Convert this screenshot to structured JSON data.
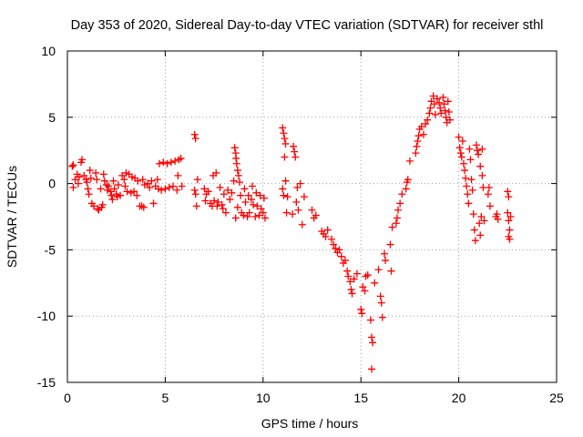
{
  "chart_data": {
    "type": "scatter",
    "title": "Day 353 of 2020, Sidereal Day-to-day VTEC variation (SDTVAR) for receiver sthl",
    "xlabel": "GPS time / hours",
    "ylabel": "SDTVAR / TECUs",
    "xlim": [
      0,
      25
    ],
    "ylim": [
      -15,
      10
    ],
    "xticks": [
      "0",
      "5",
      "10",
      "15",
      "20",
      "25"
    ],
    "yticks": [
      "10",
      "5",
      "0",
      "-5",
      "-10",
      "-15"
    ],
    "grid": true,
    "marker": "+",
    "color": "#ff0000",
    "series": [
      {
        "name": "SDTVAR",
        "points": [
          [
            0.25,
            1.3
          ],
          [
            0.3,
            1.4
          ],
          [
            0.3,
            -0.3
          ],
          [
            0.4,
            0.3
          ],
          [
            0.5,
            0.7
          ],
          [
            0.55,
            0.0
          ],
          [
            0.6,
            0.5
          ],
          [
            0.7,
            1.6
          ],
          [
            0.75,
            1.8
          ],
          [
            0.85,
            0.6
          ],
          [
            0.95,
            0.3
          ],
          [
            1.0,
            0.1
          ],
          [
            1.05,
            -0.4
          ],
          [
            1.1,
            -0.8
          ],
          [
            1.15,
            1.0
          ],
          [
            1.2,
            0.4
          ],
          [
            1.25,
            -1.5
          ],
          [
            1.35,
            -1.7
          ],
          [
            1.45,
            0.8
          ],
          [
            1.5,
            0.3
          ],
          [
            1.55,
            -1.9
          ],
          [
            1.6,
            -2.0
          ],
          [
            1.7,
            -0.4
          ],
          [
            1.75,
            -1.8
          ],
          [
            1.8,
            -1.6
          ],
          [
            1.85,
            0.7
          ],
          [
            1.9,
            0.2
          ],
          [
            2.0,
            -0.1
          ],
          [
            2.05,
            -0.5
          ],
          [
            2.1,
            -0.2
          ],
          [
            2.2,
            -0.6
          ],
          [
            2.25,
            -0.9
          ],
          [
            2.3,
            -1.2
          ],
          [
            2.35,
            0.2
          ],
          [
            2.4,
            -0.4
          ],
          [
            2.5,
            -0.8
          ],
          [
            2.55,
            -1.0
          ],
          [
            2.6,
            -0.1
          ],
          [
            2.7,
            -0.9
          ],
          [
            2.8,
            0.6
          ],
          [
            2.9,
            0.3
          ],
          [
            2.95,
            -0.2
          ],
          [
            3.0,
            0.8
          ],
          [
            3.05,
            -0.6
          ],
          [
            3.15,
            0.7
          ],
          [
            3.25,
            -0.7
          ],
          [
            3.3,
            0.5
          ],
          [
            3.4,
            -0.6
          ],
          [
            3.45,
            0.4
          ],
          [
            3.55,
            -0.9
          ],
          [
            3.6,
            0.2
          ],
          [
            3.7,
            -1.7
          ],
          [
            3.8,
            -1.7
          ],
          [
            3.85,
            0.3
          ],
          [
            3.9,
            -1.8
          ],
          [
            3.95,
            -0.1
          ],
          [
            4.1,
            0.0
          ],
          [
            4.2,
            -0.3
          ],
          [
            4.3,
            0.2
          ],
          [
            4.4,
            -1.5
          ],
          [
            4.5,
            -0.2
          ],
          [
            4.6,
            0.3
          ],
          [
            4.65,
            -0.4
          ],
          [
            4.7,
            1.5
          ],
          [
            4.8,
            -0.5
          ],
          [
            4.9,
            1.6
          ],
          [
            5.0,
            -0.4
          ],
          [
            5.1,
            1.5
          ],
          [
            5.2,
            -0.3
          ],
          [
            5.3,
            1.6
          ],
          [
            5.4,
            -0.2
          ],
          [
            5.5,
            1.7
          ],
          [
            5.6,
            -0.5
          ],
          [
            5.65,
            0.6
          ],
          [
            5.7,
            1.8
          ],
          [
            5.8,
            1.9
          ],
          [
            5.85,
            -0.2
          ],
          [
            6.5,
            3.7
          ],
          [
            6.55,
            3.4
          ],
          [
            6.5,
            -0.5
          ],
          [
            6.55,
            -0.8
          ],
          [
            6.6,
            -1.7
          ],
          [
            6.65,
            0.3
          ],
          [
            7.0,
            -0.4
          ],
          [
            7.05,
            -1.3
          ],
          [
            7.1,
            -0.8
          ],
          [
            7.2,
            -0.6
          ],
          [
            7.3,
            -1.5
          ],
          [
            7.4,
            -1.7
          ],
          [
            7.45,
            0.6
          ],
          [
            7.5,
            -1.3
          ],
          [
            7.6,
            0.8
          ],
          [
            7.65,
            -1.7
          ],
          [
            7.7,
            -1.4
          ],
          [
            7.8,
            -0.3
          ],
          [
            7.9,
            -1.6
          ],
          [
            7.95,
            -1.9
          ],
          [
            8.0,
            -0.8
          ],
          [
            8.1,
            -2.2
          ],
          [
            8.2,
            -0.5
          ],
          [
            8.3,
            -1.2
          ],
          [
            8.4,
            -0.7
          ],
          [
            8.5,
            0.2
          ],
          [
            8.55,
            2.7
          ],
          [
            8.6,
            2.3
          ],
          [
            8.62,
            1.9
          ],
          [
            8.65,
            1.5
          ],
          [
            8.7,
            1.0
          ],
          [
            8.75,
            0.6
          ],
          [
            8.8,
            0.1
          ],
          [
            8.6,
            -2.6
          ],
          [
            8.7,
            -1.8
          ],
          [
            8.85,
            -0.9
          ],
          [
            8.9,
            -2.2
          ],
          [
            9.0,
            -2.4
          ],
          [
            9.05,
            -0.4
          ],
          [
            9.1,
            -1.4
          ],
          [
            9.2,
            -2.5
          ],
          [
            9.25,
            -0.9
          ],
          [
            9.3,
            -2.2
          ],
          [
            9.4,
            -1.2
          ],
          [
            9.45,
            -0.2
          ],
          [
            9.5,
            -1.6
          ],
          [
            9.6,
            -2.5
          ],
          [
            9.65,
            -0.7
          ],
          [
            9.7,
            -1.7
          ],
          [
            9.8,
            -2.4
          ],
          [
            9.85,
            -0.9
          ],
          [
            9.9,
            -1.9
          ],
          [
            10.0,
            -2.2
          ],
          [
            10.05,
            -1.1
          ],
          [
            10.1,
            -2.6
          ],
          [
            11.0,
            4.2
          ],
          [
            11.05,
            3.8
          ],
          [
            11.1,
            3.4
          ],
          [
            11.15,
            3.0
          ],
          [
            11.0,
            -0.4
          ],
          [
            11.05,
            -0.9
          ],
          [
            11.1,
            2.0
          ],
          [
            11.15,
            0.2
          ],
          [
            11.2,
            -2.2
          ],
          [
            11.25,
            -1.0
          ],
          [
            11.5,
            -2.3
          ],
          [
            11.55,
            2.8
          ],
          [
            11.6,
            2.4
          ],
          [
            11.65,
            2.0
          ],
          [
            11.7,
            -1.4
          ],
          [
            11.75,
            -0.3
          ],
          [
            11.8,
            -2.0
          ],
          [
            11.9,
            0.0
          ],
          [
            12.0,
            -3.1
          ],
          [
            12.1,
            -1.0
          ],
          [
            12.5,
            -2.0
          ],
          [
            12.6,
            -2.6
          ],
          [
            12.7,
            -2.4
          ],
          [
            13.0,
            -3.6
          ],
          [
            13.1,
            -3.8
          ],
          [
            13.2,
            -4.0
          ],
          [
            13.3,
            -3.5
          ],
          [
            13.5,
            -4.2
          ],
          [
            13.6,
            -4.6
          ],
          [
            13.7,
            -4.9
          ],
          [
            13.8,
            -5.2
          ],
          [
            13.9,
            -5.0
          ],
          [
            14.0,
            -5.5
          ],
          [
            14.1,
            -6.0
          ],
          [
            14.2,
            -5.8
          ],
          [
            14.3,
            -6.6
          ],
          [
            14.35,
            -7.0
          ],
          [
            14.45,
            -7.4
          ],
          [
            14.5,
            -8.0
          ],
          [
            14.55,
            -8.3
          ],
          [
            14.65,
            -7.2
          ],
          [
            14.8,
            -6.8
          ],
          [
            15.0,
            -9.5
          ],
          [
            15.05,
            -9.8
          ],
          [
            15.1,
            -7.8
          ],
          [
            15.2,
            -8.1
          ],
          [
            15.25,
            -7.0
          ],
          [
            15.35,
            -6.9
          ],
          [
            15.5,
            -10.3
          ],
          [
            15.55,
            -11.6
          ],
          [
            15.6,
            -12.0
          ],
          [
            15.55,
            -14.0
          ],
          [
            15.7,
            -7.5
          ],
          [
            15.9,
            -6.5
          ],
          [
            16.0,
            -8.5
          ],
          [
            16.05,
            -9.0
          ],
          [
            16.1,
            -10.1
          ],
          [
            16.2,
            -5.3
          ],
          [
            16.25,
            -5.8
          ],
          [
            16.5,
            -4.6
          ],
          [
            16.55,
            -6.6
          ],
          [
            16.6,
            -3.3
          ],
          [
            16.8,
            -3.0
          ],
          [
            16.85,
            -2.6
          ],
          [
            16.9,
            -2.0
          ],
          [
            17.0,
            -1.5
          ],
          [
            17.1,
            -0.8
          ],
          [
            17.3,
            -0.4
          ],
          [
            17.35,
            0.1
          ],
          [
            17.4,
            0.3
          ],
          [
            17.5,
            1.7
          ],
          [
            17.8,
            2.3
          ],
          [
            17.85,
            2.8
          ],
          [
            17.9,
            3.2
          ],
          [
            17.95,
            3.6
          ],
          [
            18.0,
            4.1
          ],
          [
            18.1,
            4.3
          ],
          [
            18.2,
            3.7
          ],
          [
            18.3,
            4.5
          ],
          [
            18.4,
            4.8
          ],
          [
            18.5,
            5.3
          ],
          [
            18.55,
            5.7
          ],
          [
            18.6,
            6.2
          ],
          [
            18.7,
            6.6
          ],
          [
            18.75,
            6.0
          ],
          [
            18.8,
            5.2
          ],
          [
            18.9,
            6.4
          ],
          [
            19.0,
            6.1
          ],
          [
            19.05,
            5.7
          ],
          [
            19.1,
            5.3
          ],
          [
            19.2,
            6.5
          ],
          [
            19.25,
            6.0
          ],
          [
            19.3,
            5.5
          ],
          [
            19.35,
            5.0
          ],
          [
            19.45,
            6.2
          ],
          [
            19.5,
            5.4
          ],
          [
            19.55,
            4.8
          ],
          [
            19.4,
            4.6
          ],
          [
            20.0,
            3.5
          ],
          [
            20.05,
            2.7
          ],
          [
            20.1,
            2.3
          ],
          [
            20.15,
            2.0
          ],
          [
            20.2,
            3.2
          ],
          [
            20.25,
            1.5
          ],
          [
            20.3,
            1.0
          ],
          [
            20.35,
            0.4
          ],
          [
            20.4,
            -0.2
          ],
          [
            20.45,
            -0.8
          ],
          [
            20.5,
            -1.5
          ],
          [
            20.55,
            2.6
          ],
          [
            20.6,
            1.8
          ],
          [
            20.65,
            0.3
          ],
          [
            20.7,
            -0.5
          ],
          [
            20.75,
            -2.3
          ],
          [
            20.8,
            -3.5
          ],
          [
            20.85,
            -4.3
          ],
          [
            20.9,
            2.9
          ],
          [
            20.95,
            2.5
          ],
          [
            21.0,
            2.2
          ],
          [
            21.05,
            -3.0
          ],
          [
            21.1,
            -3.9
          ],
          [
            21.15,
            -2.5
          ],
          [
            21.2,
            2.6
          ],
          [
            21.25,
            -0.3
          ],
          [
            21.3,
            -2.8
          ],
          [
            21.1,
            1.3
          ],
          [
            21.2,
            0.6
          ],
          [
            21.5,
            -0.8
          ],
          [
            21.55,
            -0.3
          ],
          [
            21.6,
            -1.7
          ],
          [
            21.9,
            -2.5
          ],
          [
            21.95,
            -2.3
          ],
          [
            22.0,
            -2.7
          ],
          [
            22.5,
            -0.6
          ],
          [
            22.55,
            -1.0
          ],
          [
            22.5,
            -2.2
          ],
          [
            22.55,
            -2.8
          ],
          [
            22.6,
            -3.5
          ],
          [
            22.55,
            -4.0
          ],
          [
            22.6,
            -4.2
          ],
          [
            22.65,
            -2.5
          ]
        ]
      }
    ]
  }
}
